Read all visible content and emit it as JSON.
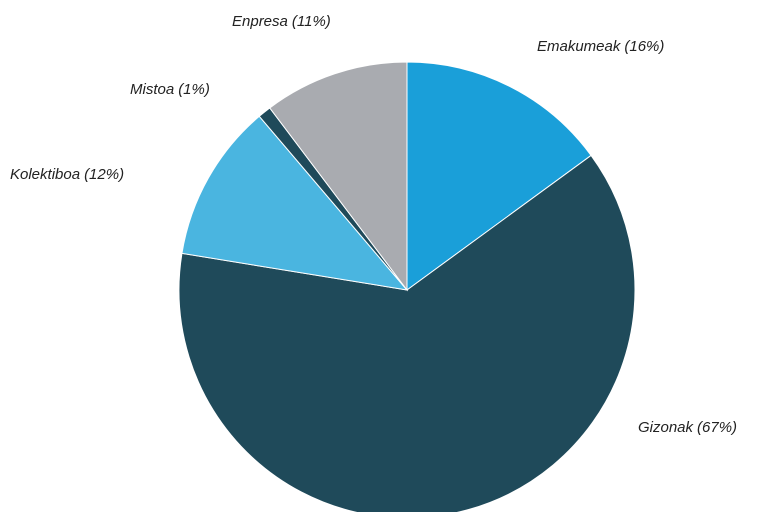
{
  "chart_data": {
    "type": "pie",
    "categories": [
      "Emakumeak",
      "Gizonak",
      "Kolektiboa",
      "Mistoa",
      "Enpresa"
    ],
    "values": [
      16,
      67,
      12,
      1,
      11
    ],
    "value_labels": [
      "(16%)",
      "(67%)",
      "(12%)",
      "(1%)",
      "(11%)"
    ],
    "colors": [
      "#1a9fd9",
      "#1f4a5a",
      "#4ab5e0",
      "#1f4a5a",
      "#a9abb0"
    ]
  }
}
